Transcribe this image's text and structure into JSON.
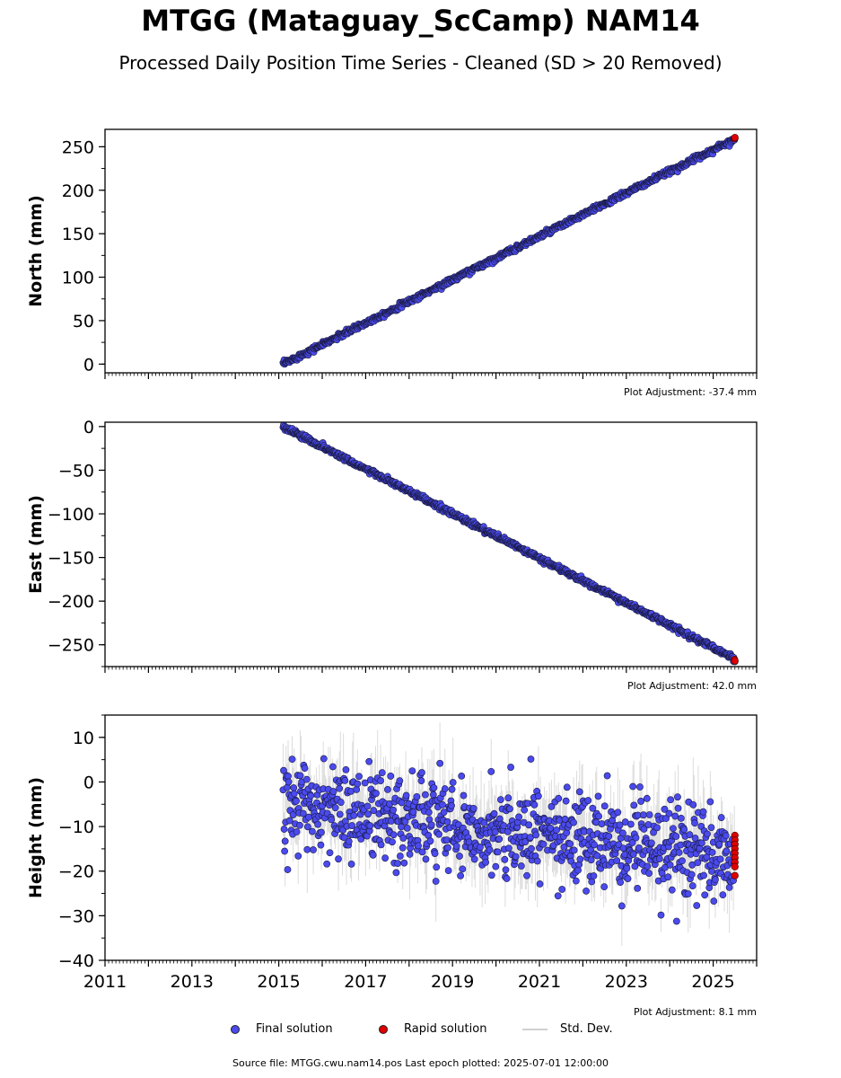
{
  "header": {
    "title": "MTGG (Mataguay_ScCamp) NAM14",
    "subtitle": "Processed Daily Position Time Series - Cleaned (SD > 20 Removed)"
  },
  "legend": {
    "final": "Final solution",
    "rapid": "Rapid solution",
    "stddev": "Std. Dev."
  },
  "footer": {
    "source": "Source file: MTGG.cwu.nam14.pos  Last epoch plotted: 2025-07-01 12:00:00"
  },
  "colors": {
    "final": "#4a4aee",
    "rapid": "#e00000",
    "stddev": "#9a9a9a"
  },
  "chart_data": [
    {
      "type": "scatter",
      "ylabel": "North (mm)",
      "xlim": [
        2011,
        2026
      ],
      "ylim": [
        -10,
        270
      ],
      "yticks": [
        0,
        50,
        100,
        150,
        200,
        250
      ],
      "adjustment": "Plot Adjustment: -37.4 mm",
      "trend": {
        "x_start": 2015.1,
        "y_start": 0,
        "x_end": 2025.5,
        "y_end": 259
      },
      "noise_sd": 1.5,
      "sd_band": 2.5,
      "rapid_points": [
        {
          "x": 2025.49,
          "y": 259.5
        },
        {
          "x": 2025.5,
          "y": 260.5
        }
      ],
      "grid": false
    },
    {
      "type": "scatter",
      "ylabel": "East (mm)",
      "xlim": [
        2011,
        2026
      ],
      "ylim": [
        -275,
        5
      ],
      "yticks": [
        0,
        -50,
        -100,
        -150,
        -200,
        -250
      ],
      "adjustment": "Plot Adjustment: 42.0 mm",
      "trend": {
        "x_start": 2015.1,
        "y_start": 0,
        "x_end": 2025.5,
        "y_end": -266
      },
      "noise_sd": 1.5,
      "sd_band": 3,
      "rapid_points": [
        {
          "x": 2025.49,
          "y": -267
        },
        {
          "x": 2025.5,
          "y": -268.5
        }
      ],
      "grid": false
    },
    {
      "type": "scatter",
      "ylabel": "Height (mm)",
      "xlim": [
        2011,
        2026
      ],
      "ylim": [
        -40,
        15
      ],
      "yticks": [
        10,
        0,
        -10,
        -20,
        -30,
        -40
      ],
      "xticks": [
        2011,
        2013,
        2015,
        2017,
        2019,
        2021,
        2023,
        2025
      ],
      "adjustment": "Plot Adjustment: 8.1 mm",
      "trend": {
        "x_start": 2015.1,
        "y_start": -5,
        "x_end": 2025.5,
        "y_end": -17
      },
      "noise_sd": 5,
      "sd_band": 8,
      "rapid_points": [
        {
          "x": 2025.5,
          "y": -12
        },
        {
          "x": 2025.5,
          "y": -13
        },
        {
          "x": 2025.5,
          "y": -14
        },
        {
          "x": 2025.5,
          "y": -15
        },
        {
          "x": 2025.5,
          "y": -16
        },
        {
          "x": 2025.5,
          "y": -17
        },
        {
          "x": 2025.5,
          "y": -18
        },
        {
          "x": 2025.5,
          "y": -19
        },
        {
          "x": 2025.5,
          "y": -21
        }
      ],
      "grid": false
    }
  ]
}
